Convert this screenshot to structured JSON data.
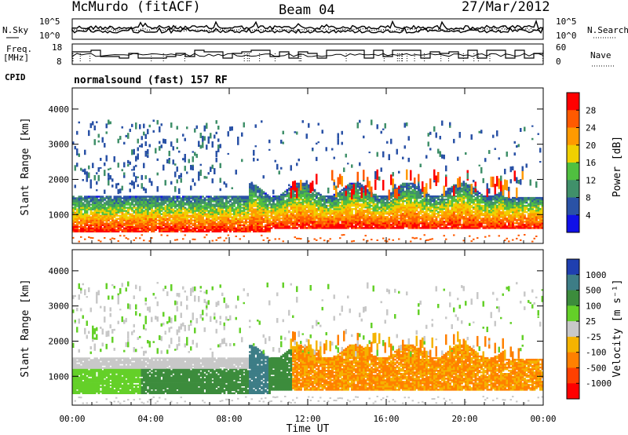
{
  "header": {
    "station": "McMurdo (fitACF)",
    "beam": "Beam 04",
    "date": "27/Mar/2012",
    "cpid_label": "CPID",
    "cpid_text": "normalsound (fast) 157 RF"
  },
  "aux_panels": {
    "noise": {
      "left_label": "N.Sky",
      "right_label": "N.Search",
      "left_ticks": [
        "10^5",
        "10^0"
      ],
      "right_ticks": [
        "10^5",
        "10^0"
      ]
    },
    "freq": {
      "left_label_1": "Freq.",
      "left_label_2": "[MHz]",
      "left_ticks": [
        "18",
        "8"
      ],
      "right_label": "Nave",
      "right_ticks": [
        "60",
        "0"
      ]
    }
  },
  "colorbars": {
    "power": {
      "label": "Power [dB]",
      "ticks": [
        "28",
        "24",
        "20",
        "16",
        "12",
        "8",
        "4"
      ],
      "colors": [
        "#ff0000",
        "#ff5a00",
        "#ff9a00",
        "#f0d000",
        "#50c040",
        "#40906a",
        "#2a52a6",
        "#1010e8"
      ]
    },
    "velocity": {
      "label": "Velocity [m s⁻¹]",
      "ticks": [
        "1000",
        "500",
        "100",
        "25",
        "-25",
        "-100",
        "-500",
        "-1000"
      ],
      "colors": [
        "#1f3fb0",
        "#3d7d86",
        "#3c8c3c",
        "#64d028",
        "#c8c8c8",
        "#f5b300",
        "#ff8000",
        "#ff4000",
        "#ff0000"
      ]
    }
  },
  "chart_data": [
    {
      "type": "heatmap",
      "title": "",
      "xlabel": "",
      "ylabel": "Slant Range [km]",
      "x_tick_labels": [
        "00:00",
        "04:00",
        "08:00",
        "12:00",
        "16:00",
        "20:00",
        "00:00"
      ],
      "y_tick_labels": [
        "1000",
        "2000",
        "3000",
        "4000"
      ],
      "xlim_hours": [
        0,
        24
      ],
      "ylim_km": [
        180,
        4600
      ],
      "colorbar": "Power [dB]",
      "clim": [
        0,
        30
      ]
    },
    {
      "type": "heatmap",
      "title": "",
      "xlabel": "Time UT",
      "ylabel": "Slant Range [km]",
      "x_tick_labels": [
        "00:00",
        "04:00",
        "08:00",
        "12:00",
        "16:00",
        "20:00",
        "00:00"
      ],
      "y_tick_labels": [
        "1000",
        "2000",
        "3000",
        "4000"
      ],
      "xlim_hours": [
        0,
        24
      ],
      "ylim_km": [
        180,
        4600
      ],
      "colorbar": "Velocity [m s⁻¹]",
      "clim": [
        -1000,
        1000
      ]
    }
  ]
}
